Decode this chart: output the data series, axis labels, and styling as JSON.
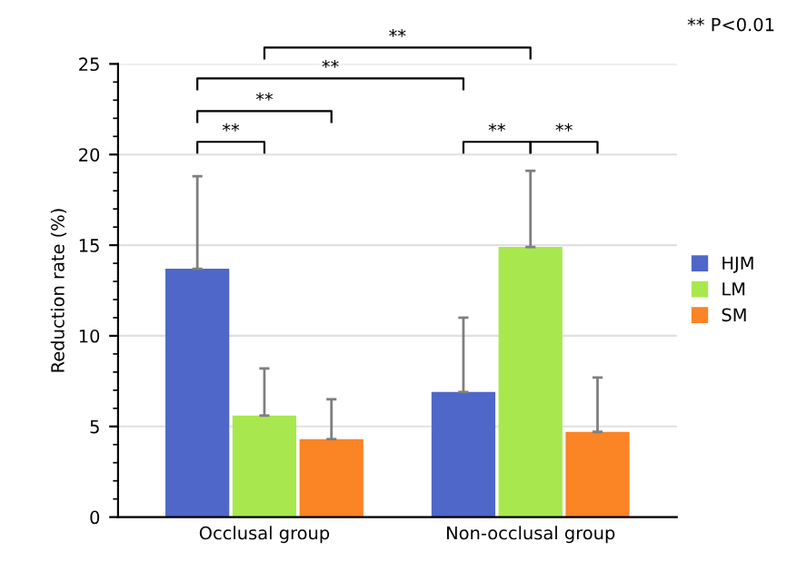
{
  "chart_data": {
    "type": "bar",
    "ylabel": "Reduction rate (%)",
    "categories": [
      "Occlusal group",
      "Non-occlusal group"
    ],
    "series": [
      {
        "name": "HJM",
        "color": "#4f67c8",
        "values": [
          13.7,
          6.9
        ],
        "errors": [
          [
            13.7,
            18.8
          ],
          [
            6.9,
            11.0
          ]
        ]
      },
      {
        "name": "LM",
        "color": "#a8e84e",
        "values": [
          5.6,
          14.9
        ],
        "errors": [
          [
            5.6,
            8.2
          ],
          [
            14.9,
            19.1
          ]
        ]
      },
      {
        "name": "SM",
        "color": "#fb8425",
        "values": [
          4.3,
          4.7
        ],
        "errors": [
          [
            4.3,
            6.5
          ],
          [
            4.7,
            7.7
          ]
        ]
      }
    ],
    "ylim": [
      0,
      25
    ],
    "yticks": [
      0,
      5,
      10,
      15,
      20,
      25
    ],
    "grid": "y",
    "legend": "right",
    "annotations": [
      "**",
      "**",
      "**",
      "**",
      "**",
      "**",
      "** P<0.01"
    ]
  }
}
